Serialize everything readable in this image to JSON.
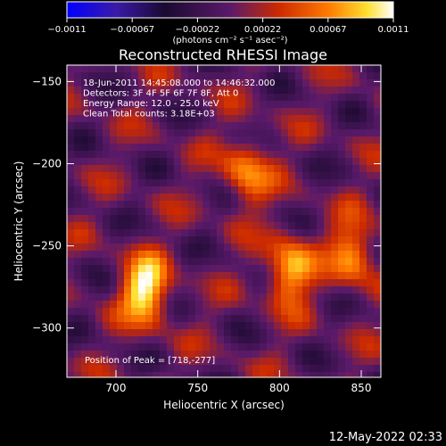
{
  "chart_data": {
    "type": "heatmap",
    "title": "Reconstructed RHESSI Image",
    "xlabel": "Heliocentric X (arcsec)",
    "ylabel": "Heliocentric Y (arcsec)",
    "xlim": [
      670,
      862
    ],
    "ylim": [
      -330,
      -140
    ],
    "x_ticks": [
      "700",
      "750",
      "800",
      "850"
    ],
    "y_ticks": [
      "−150",
      "−200",
      "−250",
      "−300"
    ],
    "x_tick_values": [
      700,
      750,
      800,
      850
    ],
    "y_tick_values": [
      -150,
      -200,
      -250,
      -300
    ],
    "colorbar": {
      "min": -0.0011,
      "max": 0.0011,
      "ticks": [
        "−0.0011",
        "−0.00067",
        "−0.00022",
        "0.00022",
        "0.00067",
        "0.0011"
      ],
      "units_label": "(photons cm⁻² s⁻¹ asec⁻²)",
      "colors": [
        "#0000ff",
        "#3a1aa8",
        "#000000",
        "#8a1f8a",
        "#cc2a00",
        "#ff7a00",
        "#ffe030",
        "#ffffff"
      ]
    },
    "annotations": [
      "18-Jun-2011 14:45:08.000 to 14:46:32.000",
      "Detectors: 3F 4F 5F 6F 7F 8F, Att 0",
      "Energy Range: 12.0 - 25.0 keV",
      "Clean    Total counts: 3.18E+03"
    ],
    "peak_label": "Position of Peak = [718,-277]",
    "peak": {
      "x": 718,
      "y": -277
    },
    "hot_spots": [
      {
        "x": 718,
        "y": -277,
        "v": 0.0011
      },
      {
        "x": 806,
        "y": -265,
        "v": 0.0009
      },
      {
        "x": 780,
        "y": -205,
        "v": 0.0007
      },
      {
        "x": 845,
        "y": -255,
        "v": 0.00075
      }
    ]
  },
  "footer": {
    "timestamp": "12-May-2022 02:33"
  }
}
